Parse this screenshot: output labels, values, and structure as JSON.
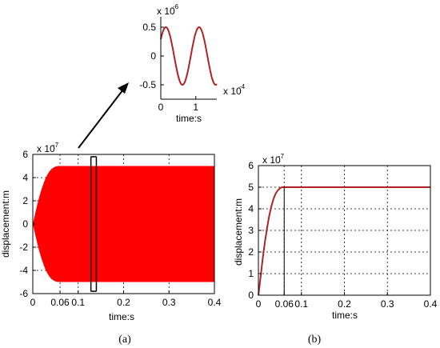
{
  "chart_data": [
    {
      "id": "a",
      "type": "area",
      "caption": "(a)",
      "xlabel": "time:s",
      "ylabel": "displacement:m",
      "y_exponent": "x 10",
      "y_exponent_power": "-7",
      "xlim": [
        0,
        0.4
      ],
      "ylim": [
        -6,
        6
      ],
      "xticks": [
        0,
        0.06,
        0.1,
        0.2,
        0.3,
        0.4
      ],
      "xtick_labels": [
        "0",
        "0.06",
        "0.1",
        "0.2",
        "0.3",
        "0.4"
      ],
      "yticks": [
        -6,
        -4,
        -2,
        0,
        2,
        4,
        6
      ],
      "ytick_labels": [
        "-6",
        "-4",
        "-2",
        "0",
        "2",
        "4",
        "6"
      ],
      "grid": true,
      "color": "#ff0000",
      "envelope": {
        "x": [
          0,
          0.005,
          0.01,
          0.015,
          0.02,
          0.025,
          0.03,
          0.035,
          0.04,
          0.045,
          0.05,
          0.055,
          0.06,
          0.4
        ],
        "upper": [
          0,
          0.85,
          1.7,
          2.45,
          3.1,
          3.65,
          4.1,
          4.45,
          4.7,
          4.85,
          4.95,
          5.0,
          5.0,
          5.0
        ],
        "lower": [
          0,
          -0.85,
          -1.7,
          -2.45,
          -3.1,
          -3.65,
          -4.1,
          -4.45,
          -4.7,
          -4.85,
          -4.95,
          -5.0,
          -5.0,
          -5.0
        ]
      },
      "zoom_box": {
        "x": [
          0.128,
          0.14
        ],
        "y": [
          -5.8,
          5.8
        ]
      }
    },
    {
      "id": "a-inset",
      "type": "line",
      "xlabel": "time:s",
      "x_exponent": "x 10",
      "x_exponent_power": "-4",
      "y_exponent": "x 10",
      "y_exponent_power": "-6",
      "xlim": [
        0,
        1.6
      ],
      "ylim": [
        -0.5,
        0.5
      ],
      "xticks": [
        0,
        1
      ],
      "xtick_labels": [
        "0",
        "1"
      ],
      "yticks": [
        0.5,
        0,
        -0.5
      ],
      "ytick_labels": [
        "0.5",
        "0",
        "-0.5"
      ],
      "grid": false,
      "color": "#b22222",
      "series": [
        {
          "amplitude": 0.5,
          "period": 0.95,
          "phase": 0.62,
          "x_end": 1.6
        }
      ]
    },
    {
      "id": "b",
      "type": "line",
      "caption": "(b)",
      "xlabel": "time:s",
      "ylabel": "displacement:m",
      "y_exponent": "x 10",
      "y_exponent_power": "-7",
      "xlim": [
        0,
        0.4
      ],
      "ylim": [
        0,
        6
      ],
      "xticks": [
        0,
        0.06,
        0.1,
        0.2,
        0.3,
        0.4
      ],
      "xtick_labels": [
        "0",
        "0.06",
        "0.1",
        "0.2",
        "0.3",
        "0.4"
      ],
      "yticks": [
        0,
        1,
        2,
        3,
        4,
        5,
        6
      ],
      "ytick_labels": [
        "0",
        "1",
        "2",
        "3",
        "4",
        "5",
        "6"
      ],
      "grid": true,
      "color": "#b22222",
      "series": [
        {
          "x": [
            0,
            0.005,
            0.01,
            0.015,
            0.02,
            0.025,
            0.03,
            0.035,
            0.04,
            0.045,
            0.05,
            0.055,
            0.06,
            0.4
          ],
          "values": [
            0,
            0.85,
            1.7,
            2.45,
            3.1,
            3.65,
            4.1,
            4.45,
            4.7,
            4.85,
            4.95,
            5.0,
            5.0,
            5.0
          ]
        }
      ]
    }
  ]
}
